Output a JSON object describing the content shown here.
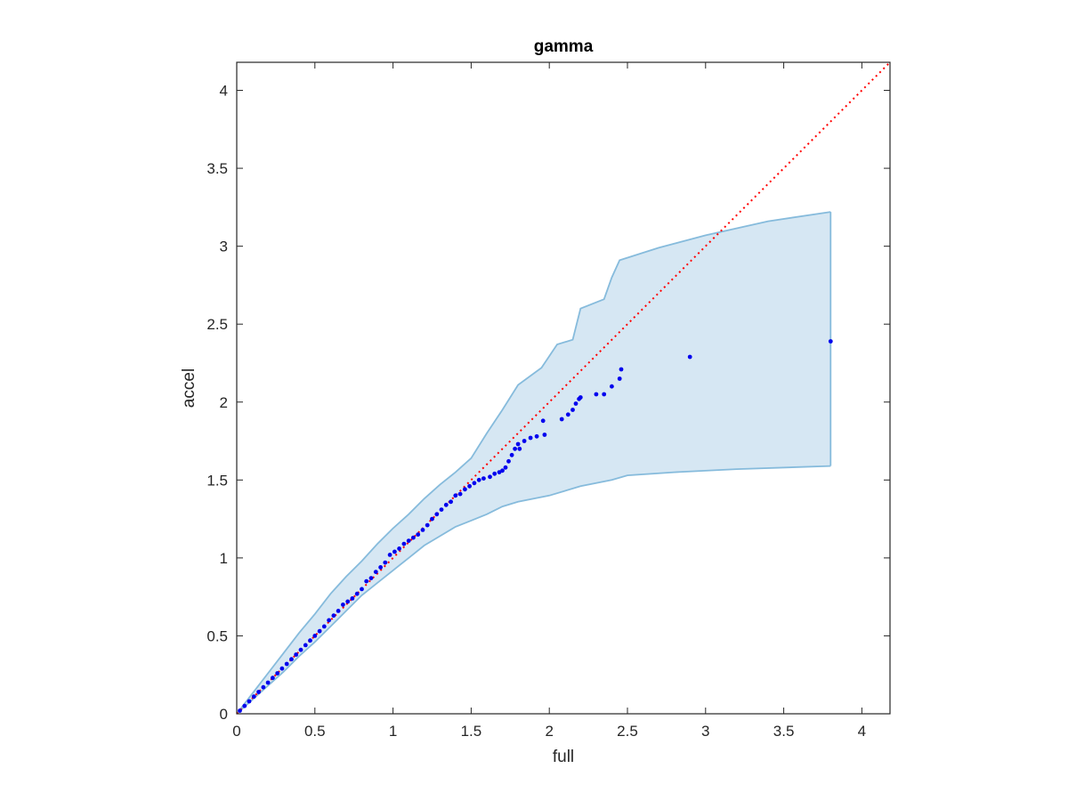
{
  "chart_data": {
    "type": "scatter",
    "title": "gamma",
    "xlabel": "full",
    "ylabel": "accel",
    "xlim": [
      0,
      4.18
    ],
    "ylim": [
      0,
      4.18
    ],
    "xticks": [
      0,
      0.5,
      1,
      1.5,
      2,
      2.5,
      3,
      3.5,
      4
    ],
    "yticks": [
      0,
      0.5,
      1,
      1.5,
      2,
      2.5,
      3,
      3.5,
      4
    ],
    "xtick_labels": [
      "0",
      "0.5",
      "1",
      "1.5",
      "2",
      "2.5",
      "3",
      "3.5",
      "4"
    ],
    "ytick_labels": [
      "0",
      "0.5",
      "1",
      "1.5",
      "2",
      "2.5",
      "3",
      "3.5",
      "4"
    ],
    "grid": false,
    "colors": {
      "points": "#0000ee",
      "reference_line": "#ff0000",
      "band_fill": "#d6e7f3",
      "band_edge": "#86bbdc",
      "axes": "#262626"
    },
    "reference_line": {
      "x": [
        0,
        4.18
      ],
      "y": [
        0,
        4.18
      ],
      "style": "dotted"
    },
    "band": {
      "upper": [
        [
          0,
          0
        ],
        [
          0.1,
          0.13
        ],
        [
          0.2,
          0.26
        ],
        [
          0.3,
          0.39
        ],
        [
          0.4,
          0.52
        ],
        [
          0.5,
          0.64
        ],
        [
          0.6,
          0.77
        ],
        [
          0.7,
          0.88
        ],
        [
          0.8,
          0.98
        ],
        [
          0.9,
          1.09
        ],
        [
          1.0,
          1.19
        ],
        [
          1.1,
          1.28
        ],
        [
          1.2,
          1.38
        ],
        [
          1.3,
          1.47
        ],
        [
          1.4,
          1.55
        ],
        [
          1.5,
          1.64
        ],
        [
          1.6,
          1.8
        ],
        [
          1.7,
          1.95
        ],
        [
          1.8,
          2.11
        ],
        [
          1.95,
          2.22
        ],
        [
          2.05,
          2.37
        ],
        [
          2.15,
          2.4
        ],
        [
          2.2,
          2.6
        ],
        [
          2.35,
          2.66
        ],
        [
          2.4,
          2.8
        ],
        [
          2.45,
          2.91
        ],
        [
          2.7,
          2.99
        ],
        [
          3.0,
          3.07
        ],
        [
          3.4,
          3.16
        ],
        [
          3.8,
          3.22
        ]
      ],
      "lower": [
        [
          0,
          0
        ],
        [
          0.1,
          0.09
        ],
        [
          0.2,
          0.18
        ],
        [
          0.3,
          0.27
        ],
        [
          0.4,
          0.37
        ],
        [
          0.5,
          0.46
        ],
        [
          0.6,
          0.56
        ],
        [
          0.7,
          0.66
        ],
        [
          0.8,
          0.76
        ],
        [
          0.9,
          0.84
        ],
        [
          1.0,
          0.92
        ],
        [
          1.1,
          1.0
        ],
        [
          1.2,
          1.08
        ],
        [
          1.3,
          1.14
        ],
        [
          1.4,
          1.2
        ],
        [
          1.5,
          1.24
        ],
        [
          1.6,
          1.28
        ],
        [
          1.7,
          1.33
        ],
        [
          1.8,
          1.36
        ],
        [
          2.0,
          1.4
        ],
        [
          2.2,
          1.46
        ],
        [
          2.4,
          1.5
        ],
        [
          2.5,
          1.53
        ],
        [
          2.8,
          1.55
        ],
        [
          3.2,
          1.57
        ],
        [
          3.8,
          1.59
        ]
      ]
    },
    "points": {
      "x": [
        0.02,
        0.05,
        0.08,
        0.11,
        0.14,
        0.17,
        0.2,
        0.23,
        0.26,
        0.29,
        0.32,
        0.35,
        0.38,
        0.41,
        0.44,
        0.47,
        0.5,
        0.53,
        0.56,
        0.59,
        0.62,
        0.65,
        0.68,
        0.71,
        0.74,
        0.77,
        0.8,
        0.83,
        0.86,
        0.89,
        0.92,
        0.95,
        0.98,
        1.01,
        1.04,
        1.07,
        1.1,
        1.13,
        1.16,
        1.19,
        1.22,
        1.25,
        1.28,
        1.31,
        1.34,
        1.37,
        1.4,
        1.43,
        1.46,
        1.49,
        1.52,
        1.55,
        1.58,
        1.62,
        1.65,
        1.68,
        1.7,
        1.72,
        1.74,
        1.76,
        1.78,
        1.8,
        1.81,
        1.84,
        1.88,
        1.92,
        1.96,
        1.97,
        2.08,
        2.12,
        2.15,
        2.17,
        2.19,
        2.2,
        2.3,
        2.35,
        2.4,
        2.45,
        2.46,
        2.9,
        3.8
      ],
      "y": [
        0.02,
        0.05,
        0.08,
        0.11,
        0.14,
        0.17,
        0.2,
        0.23,
        0.26,
        0.29,
        0.32,
        0.35,
        0.38,
        0.41,
        0.44,
        0.47,
        0.5,
        0.53,
        0.56,
        0.6,
        0.63,
        0.66,
        0.7,
        0.72,
        0.74,
        0.77,
        0.8,
        0.85,
        0.87,
        0.91,
        0.94,
        0.97,
        1.02,
        1.04,
        1.06,
        1.09,
        1.11,
        1.13,
        1.15,
        1.18,
        1.21,
        1.25,
        1.28,
        1.31,
        1.34,
        1.36,
        1.4,
        1.41,
        1.44,
        1.46,
        1.48,
        1.5,
        1.51,
        1.52,
        1.54,
        1.55,
        1.56,
        1.58,
        1.62,
        1.66,
        1.7,
        1.73,
        1.7,
        1.75,
        1.77,
        1.78,
        1.88,
        1.79,
        1.89,
        1.92,
        1.95,
        1.99,
        2.02,
        2.03,
        2.05,
        2.05,
        2.1,
        2.15,
        2.21,
        2.29,
        2.39
      ]
    }
  }
}
